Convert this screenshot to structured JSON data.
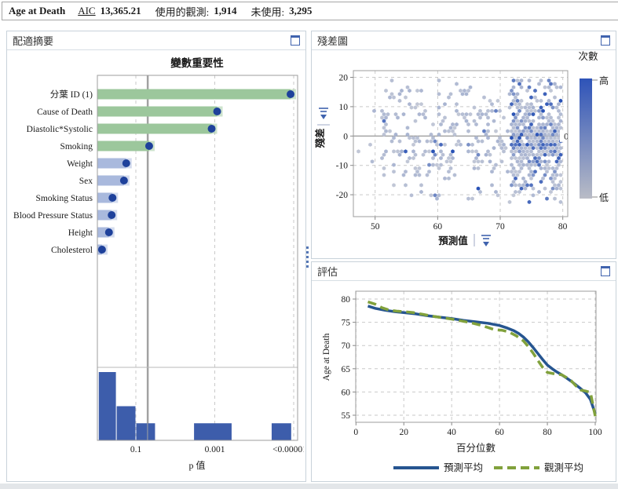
{
  "header": {
    "title": "Age at Death",
    "aic_label": "AIC",
    "aic_value": "13,365.21",
    "used_label": "使用的觀測:",
    "used_value": "1,914",
    "unused_label": "未使用:",
    "unused_value": "3,295"
  },
  "panels": {
    "fit_summary": {
      "title": "配適摘要"
    },
    "residual": {
      "title": "殘差圖"
    },
    "assessment": {
      "title": "評估"
    }
  },
  "colors": {
    "green_bar": "#9cc79c",
    "lavender_bar": "#a9b9dd",
    "dot": "#1e419b",
    "histogram": "#3d5dab",
    "threshold_line": "#a2a2a2",
    "grid_dash": "#c9c9c9",
    "plot_border": "#9e9e9e",
    "blue_line": "#265590",
    "olive_line": "#81a13c",
    "hex_light": "#c9cdd8",
    "hex_dark": "#1d49b3",
    "accent": "#4063ae"
  },
  "chart_data": [
    {
      "id": "variable_importance",
      "type": "bar",
      "title": "變數重要性",
      "xlabel": "p 值",
      "x_scale": "log-reversed",
      "x_tick_labels": [
        "0.1",
        "0.001",
        "<0.00001"
      ],
      "x_tick_values": [
        0.1,
        0.001,
        1e-05
      ],
      "threshold_p": 0.05,
      "categories": [
        "分葉 ID (1)",
        "Cause of Death",
        "Diastolic*Systolic",
        "Smoking",
        "Weight",
        "Sex",
        "Smoking Status",
        "Blood Pressure Status",
        "Height",
        "Cholesterol"
      ],
      "p_values": [
        1.2e-05,
        0.00087,
        0.0012,
        0.046,
        0.175,
        0.2,
        0.39,
        0.41,
        0.48,
        0.72
      ],
      "significant": [
        true,
        true,
        true,
        true,
        false,
        false,
        false,
        false,
        false,
        false
      ],
      "histogram_bins": [
        {
          "p_from": 0.89,
          "p_to": 0.313,
          "count": 4
        },
        {
          "p_from": 0.313,
          "p_to": 0.1,
          "count": 2
        },
        {
          "p_from": 0.1,
          "p_to": 0.0505,
          "count": 1
        },
        {
          "p_from": 0.0505,
          "p_to": 0.0319,
          "count": 1
        },
        {
          "p_from": 0.00343,
          "p_to": 0.000366,
          "count": 1
        },
        {
          "p_from": 3.7e-05,
          "p_to": 1.13e-05,
          "count": 1
        }
      ]
    },
    {
      "id": "residual_plot",
      "type": "heatmap",
      "xlabel": "預測值",
      "ylabel": "殘差",
      "x_ticks": [
        50,
        60,
        70,
        80
      ],
      "y_ticks": [
        20,
        10,
        0,
        -10,
        -20
      ],
      "xlim": [
        46.5,
        81.3
      ],
      "ylim": [
        -27.5,
        22
      ],
      "zero_line_label": "0",
      "legend": {
        "title": "次數",
        "high_label": "高",
        "low_label": "低"
      },
      "hexbin_spec": {
        "seed": 1913,
        "y_min": -23.5,
        "y_max": 19.5,
        "regions": [
          {
            "x_min": 51.0,
            "x_max": 71.8,
            "density": 0.3,
            "y_mean": -1.5,
            "y_sd": 10.5,
            "blue_frac": 0.06
          },
          {
            "x_min": 71.8,
            "x_max": 79.7,
            "density": 0.93,
            "y_mean": -1.0,
            "y_sd": 12.0,
            "blue_frac": 0.3
          },
          {
            "x_min": 47.3,
            "x_max": 51.0,
            "density": 0.05,
            "y_mean": -4.0,
            "y_sd": 8.0,
            "blue_frac": 0.02
          }
        ]
      }
    },
    {
      "id": "assessment",
      "type": "line",
      "xlabel": "百分位數",
      "ylabel": "Age at Death",
      "x_ticks": [
        0,
        20,
        40,
        60,
        80,
        100
      ],
      "y_ticks": [
        55,
        60,
        65,
        70,
        75,
        80
      ],
      "xlim": [
        0,
        100
      ],
      "ylim": [
        53.5,
        81.5
      ],
      "series": [
        {
          "name": "預測平均",
          "style": "solid",
          "x": [
            5,
            8,
            12,
            16,
            20,
            25,
            30,
            35,
            40,
            45,
            50,
            55,
            60,
            63,
            66,
            68,
            70,
            72,
            74,
            76,
            78,
            80,
            82,
            84,
            86,
            88,
            90,
            92,
            94,
            96,
            98,
            100
          ],
          "y": [
            78.5,
            78.0,
            77.6,
            77.3,
            77.1,
            76.8,
            76.4,
            76.1,
            75.8,
            75.4,
            75.1,
            74.8,
            74.3,
            73.8,
            73.2,
            72.6,
            71.8,
            70.8,
            69.6,
            68.3,
            67.0,
            65.8,
            65.0,
            64.3,
            63.7,
            63.0,
            62.3,
            61.5,
            60.7,
            59.8,
            58.4,
            55.3
          ]
        },
        {
          "name": "觀測平均",
          "style": "dashed",
          "x": [
            5,
            8,
            11,
            14,
            17,
            20,
            24,
            28,
            32,
            36,
            40,
            44,
            48,
            52,
            55,
            58,
            61,
            64,
            67,
            70,
            72,
            74,
            76,
            78,
            80,
            83,
            86,
            88,
            90,
            92,
            94,
            96,
            98,
            100
          ],
          "y": [
            79.4,
            78.9,
            78.1,
            77.6,
            77.4,
            77.3,
            77.1,
            76.7,
            76.3,
            76.0,
            75.7,
            75.3,
            74.9,
            74.4,
            73.9,
            73.4,
            73.3,
            72.9,
            72.1,
            71.0,
            69.8,
            68.4,
            66.8,
            65.3,
            64.2,
            63.9,
            63.7,
            63.1,
            62.4,
            61.3,
            60.4,
            60.2,
            59.9,
            54.8
          ]
        }
      ]
    }
  ]
}
